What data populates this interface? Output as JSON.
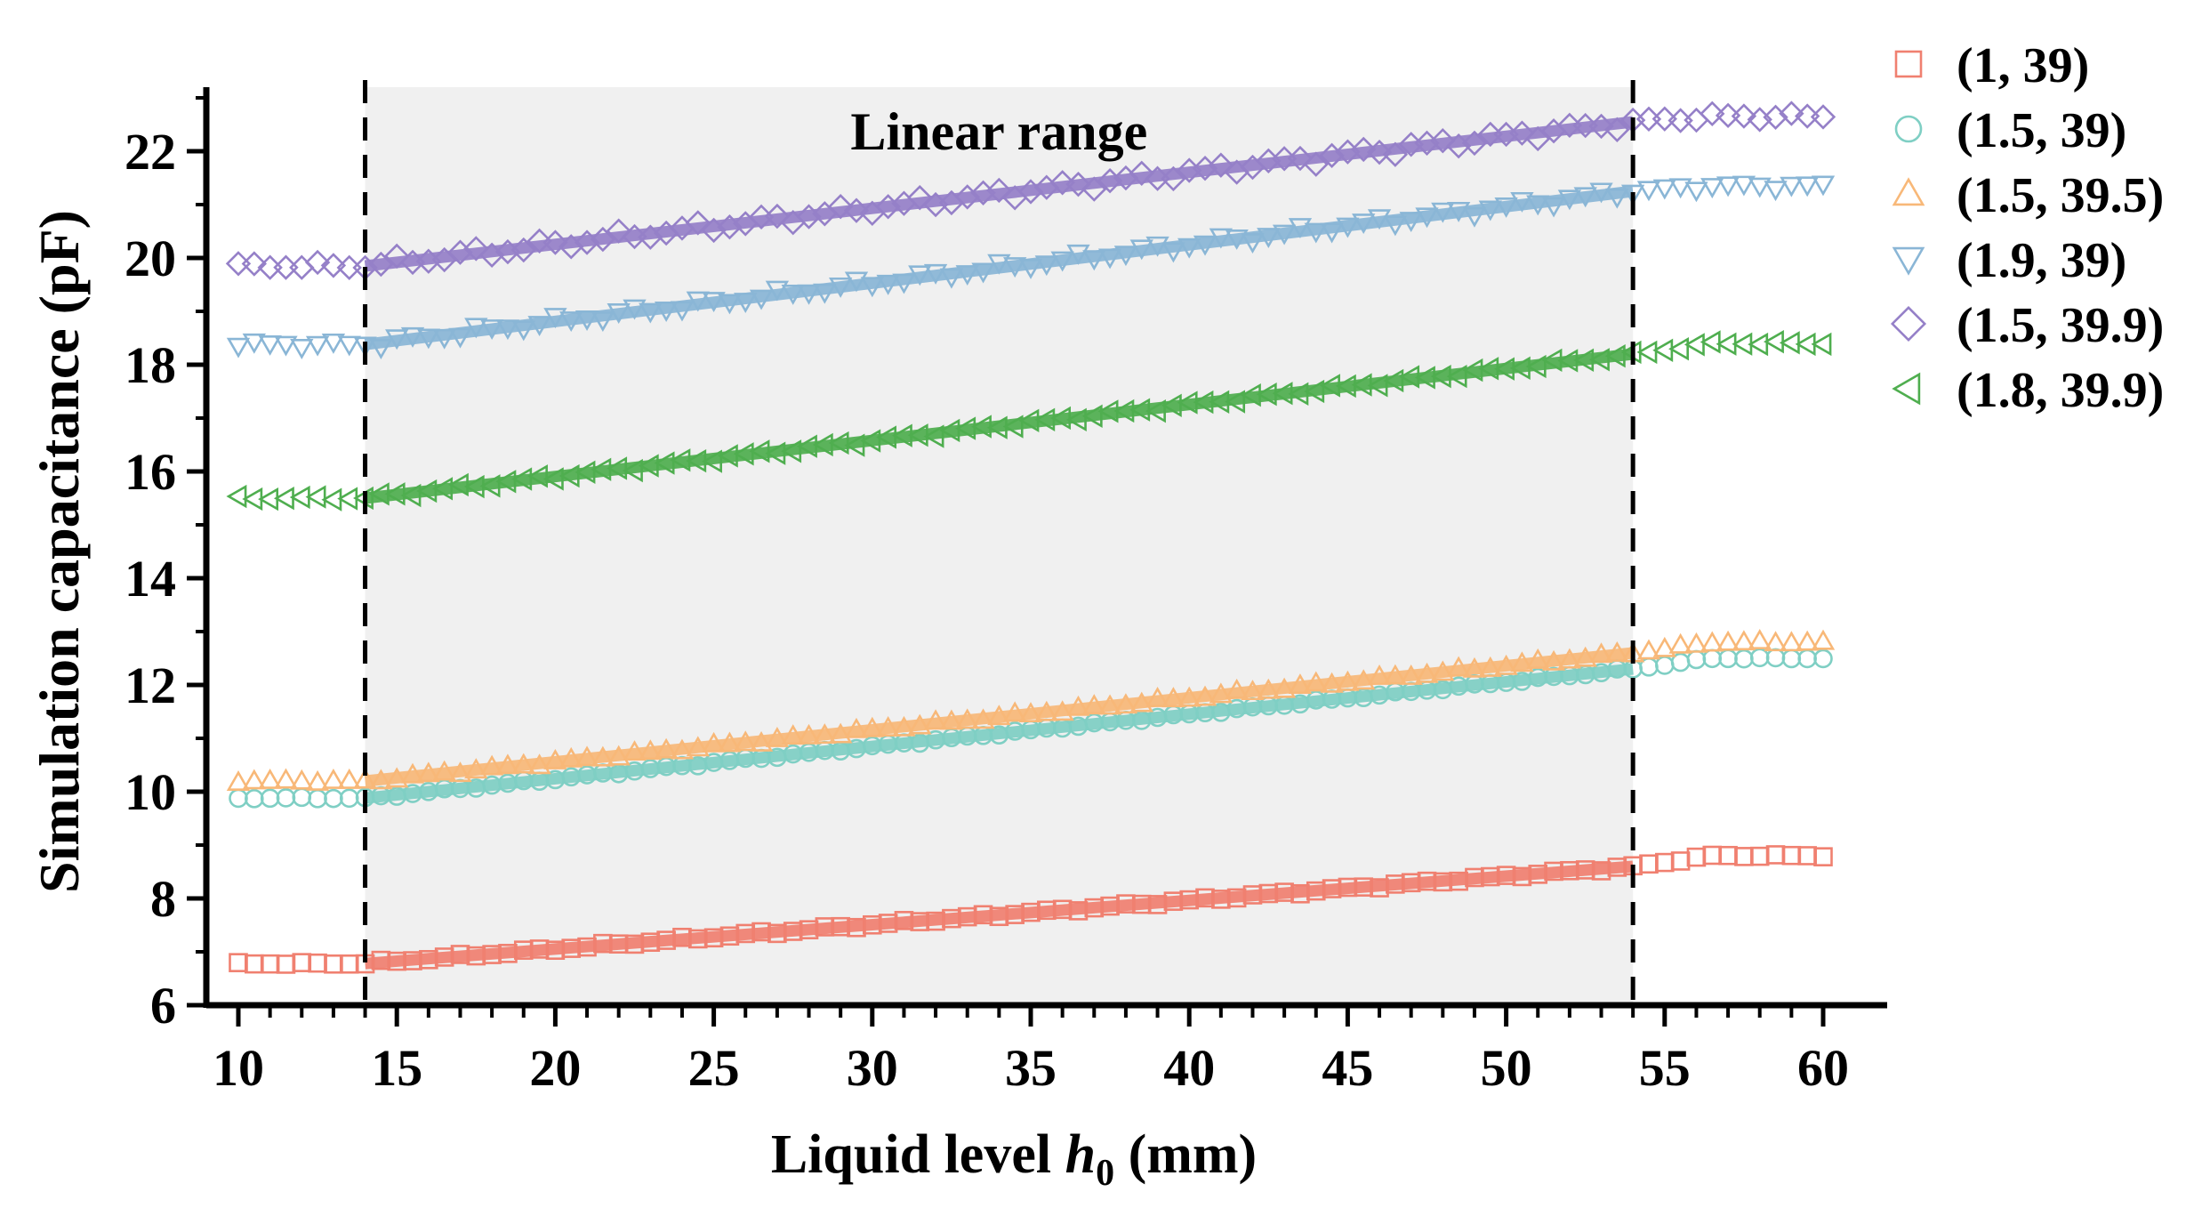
{
  "chart_data": {
    "type": "scatter",
    "xlabel": "Liquid level ",
    "xlabel_var": "h",
    "xlabel_sub": "0",
    "xlabel_unit": " (mm)",
    "ylabel": "Simulation capacitance (pF)",
    "xlim": [
      9.2,
      61.2
    ],
    "ylim": [
      6,
      23.2
    ],
    "xticks": [
      10,
      15,
      20,
      25,
      30,
      35,
      40,
      45,
      50,
      55,
      60
    ],
    "yticks": [
      6,
      8,
      10,
      12,
      14,
      16,
      18,
      20,
      22
    ],
    "linear_range": {
      "label": "Linear range",
      "x_start": 14,
      "x_end": 54,
      "shade": "#f0f0f0"
    },
    "x_step": 0.5,
    "series": [
      {
        "name": "(1, 39)",
        "marker": "square",
        "color": "#f08070",
        "flat_start": 6.78,
        "fit_start": 6.78,
        "fit_end": 8.6,
        "flat_end": 8.8,
        "noise": 0.025
      },
      {
        "name": "(1.5, 39)",
        "marker": "circle",
        "color": "#7fcfc4",
        "flat_start": 9.88,
        "fit_start": 9.88,
        "fit_end": 12.3,
        "flat_end": 12.5,
        "noise": 0.02
      },
      {
        "name": "(1.5, 39.5)",
        "marker": "triangle-up",
        "color": "#f8b878",
        "flat_start": 10.2,
        "fit_start": 10.2,
        "fit_end": 12.6,
        "flat_end": 12.8,
        "noise": 0.03
      },
      {
        "name": "(1.9, 39)",
        "marker": "triangle-down",
        "color": "#8ab6d6",
        "flat_start": 18.38,
        "fit_start": 18.38,
        "fit_end": 21.25,
        "flat_end": 21.35,
        "noise": 0.07
      },
      {
        "name": "(1.5, 39.9)",
        "marker": "diamond",
        "color": "#9580c8",
        "flat_start": 19.85,
        "fit_start": 19.85,
        "fit_end": 22.55,
        "flat_end": 22.65,
        "noise": 0.08
      },
      {
        "name": "(1.8, 39.9)",
        "marker": "triangle-left",
        "color": "#4fae4f",
        "flat_start": 15.5,
        "fit_start": 15.5,
        "fit_end": 18.2,
        "flat_end": 18.4,
        "noise": 0.04
      }
    ]
  }
}
